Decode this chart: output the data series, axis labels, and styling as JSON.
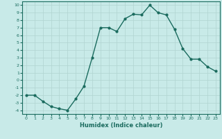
{
  "x": [
    0,
    1,
    2,
    3,
    4,
    5,
    6,
    7,
    8,
    9,
    10,
    11,
    12,
    13,
    14,
    15,
    16,
    17,
    18,
    19,
    20,
    21,
    22,
    23
  ],
  "y": [
    -2.0,
    -2.0,
    -2.8,
    -3.5,
    -3.8,
    -4.0,
    -2.5,
    -0.8,
    3.0,
    7.0,
    7.0,
    6.5,
    8.2,
    8.8,
    8.7,
    10.0,
    9.0,
    8.7,
    6.8,
    4.2,
    2.8,
    2.8,
    1.8,
    1.2
  ],
  "xlabel": "Humidex (Indice chaleur)",
  "ylim": [
    -4.5,
    10.5
  ],
  "xlim": [
    -0.5,
    23.5
  ],
  "yticks": [
    -4,
    -3,
    -2,
    -1,
    0,
    1,
    2,
    3,
    4,
    5,
    6,
    7,
    8,
    9,
    10
  ],
  "xticks": [
    0,
    1,
    2,
    3,
    4,
    5,
    6,
    7,
    8,
    9,
    10,
    11,
    12,
    13,
    14,
    15,
    16,
    17,
    18,
    19,
    20,
    21,
    22,
    23
  ],
  "line_color": "#1a6b5e",
  "bg_color": "#c8eae8",
  "grid_color": "#b0d4d0"
}
